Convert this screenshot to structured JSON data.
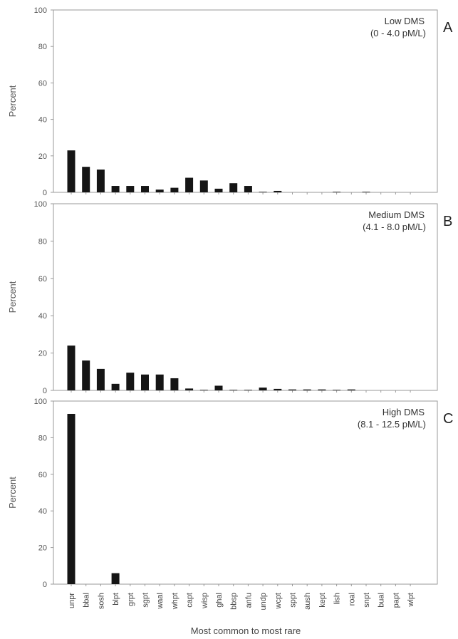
{
  "chart_data": [
    {
      "type": "bar",
      "panel_letter": "A",
      "title": "Low DMS",
      "subtitle": "(0 - 4.0 pM/L)",
      "ylabel": "Percent",
      "xlabel": "",
      "ylim": [
        0,
        100
      ],
      "yticks": [
        "0",
        "20",
        "40",
        "60",
        "80",
        "100"
      ],
      "categories": [
        "unpr",
        "bbal",
        "sosh",
        "blpt",
        "grpt",
        "sgpt",
        "waal",
        "whpt",
        "capt",
        "wisp",
        "ghal",
        "bbsp",
        "anfu",
        "undp",
        "wcpt",
        "sppt",
        "aush",
        "kept",
        "lish",
        "roal",
        "snpt",
        "bual",
        "papt",
        "wlpt"
      ],
      "values": [
        23,
        14,
        12.5,
        3.5,
        3.5,
        3.5,
        1.5,
        2.5,
        8,
        6.5,
        2,
        5,
        3.5,
        0.3,
        0.8,
        0,
        0,
        0,
        0.3,
        0,
        0.3,
        0,
        0,
        0
      ]
    },
    {
      "type": "bar",
      "panel_letter": "B",
      "title": "Medium DMS",
      "subtitle": "(4.1 - 8.0 pM/L)",
      "ylabel": "Percent",
      "xlabel": "",
      "ylim": [
        0,
        100
      ],
      "yticks": [
        "0",
        "20",
        "40",
        "60",
        "80",
        "100"
      ],
      "categories": [
        "unpr",
        "bbal",
        "sosh",
        "blpt",
        "grpt",
        "sgpt",
        "waal",
        "whpt",
        "capt",
        "wisp",
        "ghal",
        "bbsp",
        "anfu",
        "undp",
        "wcpt",
        "sppt",
        "aush",
        "kept",
        "lish",
        "roal",
        "snpt",
        "bual",
        "papt",
        "wlpt"
      ],
      "values": [
        24,
        16,
        11.5,
        3.5,
        9.5,
        8.5,
        8.5,
        6.5,
        1,
        0.3,
        2.5,
        0.3,
        0.3,
        1.5,
        0.8,
        0.5,
        0.5,
        0.5,
        0.3,
        0.5,
        0,
        0,
        0,
        0
      ]
    },
    {
      "type": "bar",
      "panel_letter": "C",
      "title": "High DMS",
      "subtitle": "(8.1 - 12.5 pM/L)",
      "ylabel": "Percent",
      "xlabel": "Most common to most rare",
      "ylim": [
        0,
        100
      ],
      "yticks": [
        "0",
        "20",
        "40",
        "60",
        "80",
        "100"
      ],
      "categories": [
        "unpr",
        "bbal",
        "sosh",
        "blpt",
        "grpt",
        "sgpt",
        "waal",
        "whpt",
        "capt",
        "wisp",
        "ghal",
        "bbsp",
        "anfu",
        "undp",
        "wcpt",
        "sppt",
        "aush",
        "kept",
        "lish",
        "roal",
        "snpt",
        "bual",
        "papt",
        "wlpt"
      ],
      "values": [
        93,
        0,
        0,
        6,
        0,
        0,
        0,
        0,
        0,
        0,
        0,
        0,
        0,
        0,
        0,
        0,
        0,
        0,
        0,
        0,
        0,
        0,
        0,
        0
      ]
    }
  ],
  "colors": {
    "bar": "#151515",
    "frame": "#9a9a9a",
    "text": "#444444"
  }
}
